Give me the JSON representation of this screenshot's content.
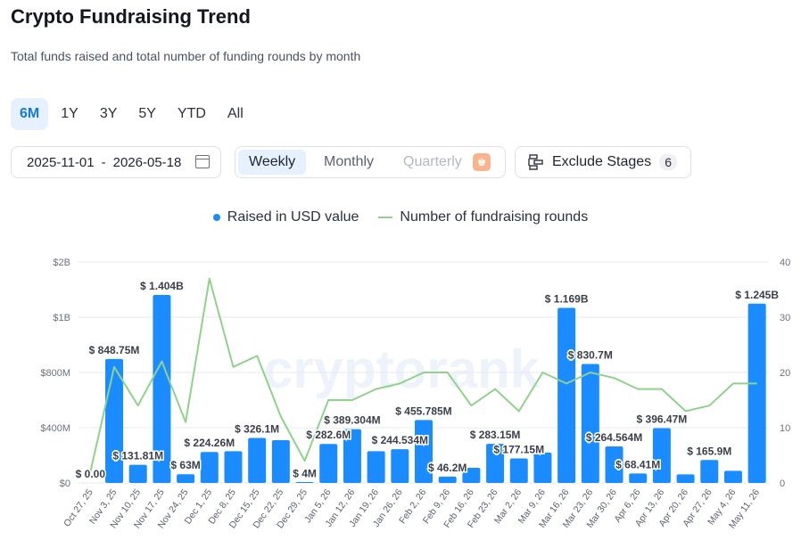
{
  "header": {
    "title": "Crypto Fundraising Trend",
    "subtitle": "Total funds raised and total number of funding rounds by month"
  },
  "ranges": [
    "6M",
    "1Y",
    "3Y",
    "5Y",
    "YTD",
    "All"
  ],
  "active_range": "6M",
  "date_range": {
    "start": "2025-11-01",
    "separator": "-",
    "end": "2026-05-18"
  },
  "periods": {
    "weekly": "Weekly",
    "monthly": "Monthly",
    "quarterly": "Quarterly",
    "active": "Weekly"
  },
  "exclude": {
    "label": "Exclude Stages",
    "count": "6"
  },
  "icons": {
    "calendar": "calendar-icon",
    "stages": "stages-icon",
    "premium": "crown-icon"
  },
  "colors": {
    "bar": "#1a8cff",
    "line": "#8fd28a",
    "accent": "#1677e5"
  },
  "chart_data": {
    "type": "bar",
    "title": "",
    "categories": [
      "Oct 27, 25",
      "Nov 3, 25",
      "Nov 10, 25",
      "Nov 17, 25",
      "Nov 24, 25",
      "Dec 1, 25",
      "Dec 8, 25",
      "Dec 15, 25",
      "Dec 22, 25",
      "Dec 29, 25",
      "Jan 5, 26",
      "Jan 12, 26",
      "Jan 19, 26",
      "Jan 26, 26",
      "Feb 2, 26",
      "Feb 9, 26",
      "Feb 16, 26",
      "Feb 23, 26",
      "Mar 2, 26",
      "Mar 9, 26",
      "Mar 16, 26",
      "Mar 23, 26",
      "Mar 30, 26",
      "Apr 6, 26",
      "Apr 13, 26",
      "Apr 20, 26",
      "Apr 27, 26",
      "May 4, 26",
      "May 11, 26"
    ],
    "series": [
      {
        "name": "Raised in USD value",
        "axis": "left",
        "values": [
          0,
          848.75,
          131.81,
          1404,
          63,
          224.26,
          230,
          326.1,
          310,
          4,
          282.6,
          389.304,
          230,
          244.534,
          455.785,
          46.2,
          110,
          283.15,
          177.15,
          220,
          1169,
          830.7,
          264.564,
          68.41,
          396.47,
          62,
          165.9,
          88,
          1245
        ],
        "labels": [
          "$ 0.00",
          "$ 848.75M",
          "$ 131.81M",
          "$ 1.404B",
          "$ 63M",
          "$ 224.26M",
          "",
          "$ 326.1M",
          "",
          "$ 4M",
          "$ 282.6M",
          "$ 389.304M",
          "",
          "$ 244.534M",
          "$ 455.785M",
          "$ 46.2M",
          "",
          "$ 283.15M",
          "$ 177.15M",
          "",
          "$ 1.169B",
          "$ 830.7M",
          "$ 264.564M",
          "$ 68.41M",
          "$ 396.47M",
          "",
          "$ 165.9M",
          "",
          "$ 1.245B"
        ]
      },
      {
        "name": "Number of fundraising rounds",
        "axis": "right",
        "values": [
          2,
          21,
          14,
          22,
          11,
          37,
          21,
          23,
          12,
          4,
          15,
          15,
          17,
          18,
          20,
          20,
          14,
          17,
          13,
          20,
          18,
          20,
          19,
          17,
          17,
          13,
          14,
          18,
          18
        ]
      }
    ],
    "left_axis": {
      "ticks": [
        0,
        400,
        800,
        1000,
        2000
      ],
      "tick_labels": [
        "$0",
        "$400M",
        "$800M",
        "$1B",
        "$2B"
      ]
    },
    "right_axis": {
      "ticks": [
        0,
        10,
        20,
        30,
        40
      ],
      "tick_labels": [
        "0",
        "10",
        "20",
        "30",
        "40"
      ],
      "ylim": [
        0,
        40
      ]
    },
    "left_axis_scale": "piecewise",
    "grid": true,
    "legend_position": "top-center",
    "watermark": "cryptorank"
  }
}
